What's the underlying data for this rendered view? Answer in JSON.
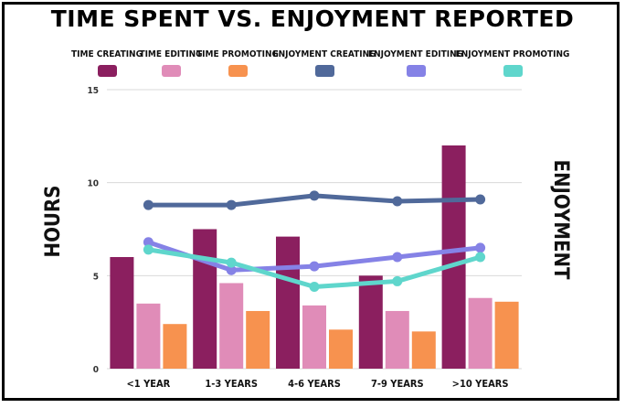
{
  "chart_data": {
    "type": "bar",
    "title": "TIME SPENT VS. ENJOYMENT REPORTED",
    "ylabel": "HOURS",
    "y2label": "ENJOYMENT",
    "ylim": [
      0,
      15
    ],
    "yticks": [
      0,
      5,
      10,
      15
    ],
    "categories": [
      "<1 YEAR",
      "1-3 YEARS",
      "4-6 YEARS",
      "7-9 YEARS",
      ">10 YEARS"
    ],
    "bar_series": [
      {
        "name": "TIME CREATING",
        "color": "#8b1f5f",
        "values": [
          6.0,
          7.5,
          7.1,
          5.0,
          12.0
        ]
      },
      {
        "name": "TIME EDITING",
        "color": "#e08cb8",
        "values": [
          3.5,
          4.6,
          3.4,
          3.1,
          3.8
        ]
      },
      {
        "name": "TIME PROMOTING",
        "color": "#f7924f",
        "values": [
          2.4,
          3.1,
          2.1,
          2.0,
          3.6
        ]
      }
    ],
    "line_series": [
      {
        "name": "ENJOYMENT CREATING",
        "color": "#50699a",
        "values": [
          8.8,
          8.8,
          9.3,
          9.0,
          9.1
        ]
      },
      {
        "name": "ENJOYMENT EDITING",
        "color": "#8582e6",
        "values": [
          6.8,
          5.3,
          5.5,
          6.0,
          6.5
        ]
      },
      {
        "name": "ENJOYMENT PROMOTING",
        "color": "#5fd6cc",
        "values": [
          6.4,
          5.7,
          4.4,
          4.7,
          6.0
        ]
      }
    ],
    "grid": true,
    "legend_position": "top"
  }
}
